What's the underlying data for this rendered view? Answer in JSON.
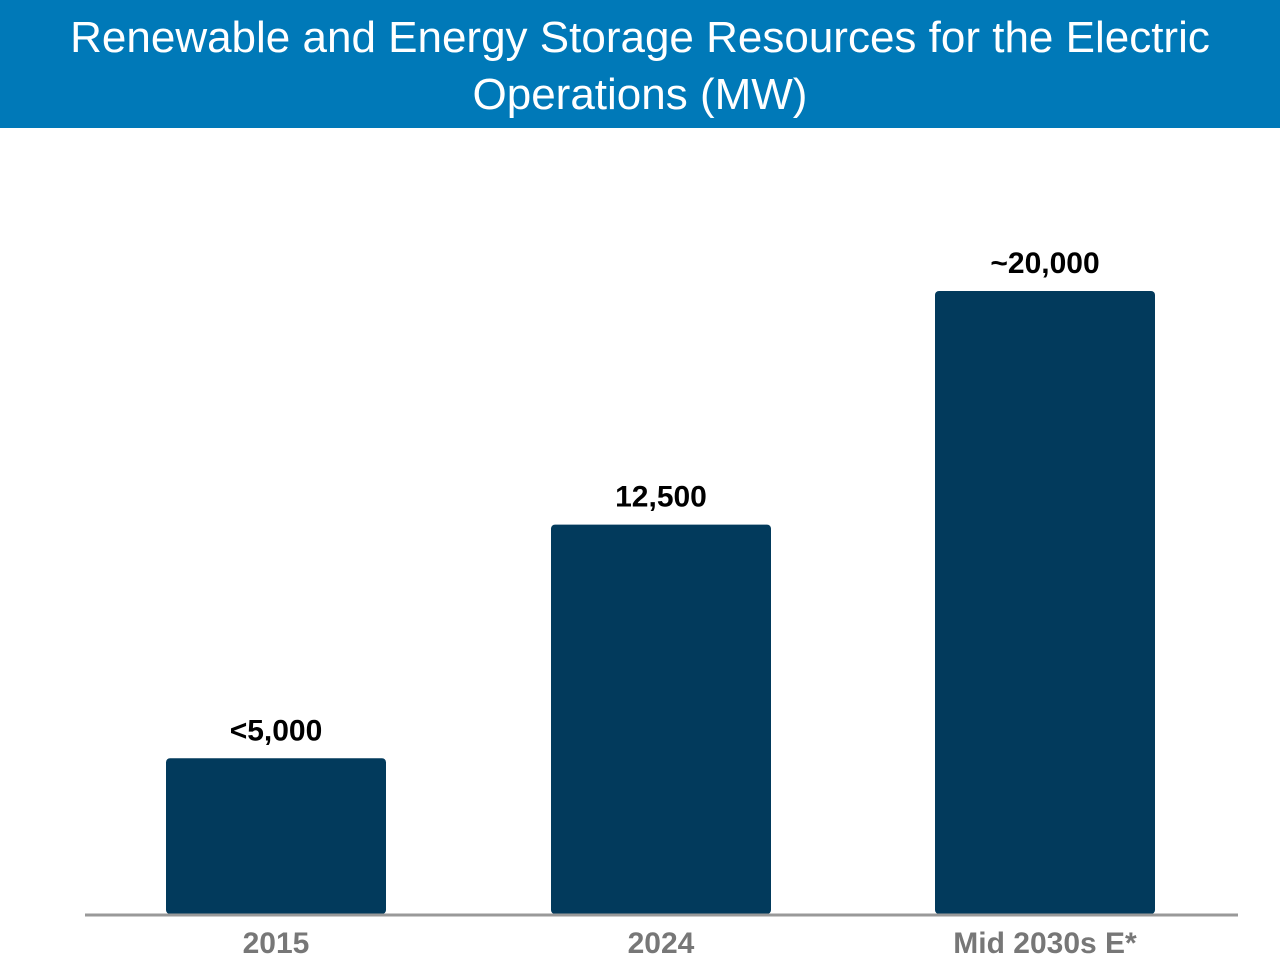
{
  "chart_data": {
    "type": "bar",
    "title": "Renewable and Energy Storage Resources for the Electric Operations (MW)",
    "categories": [
      "2015",
      "2024",
      "Mid 2030s E*"
    ],
    "values": [
      5000,
      12500,
      20000
    ],
    "data_labels": [
      "<5,000",
      "12,500",
      "~20,000"
    ],
    "xlabel": "",
    "ylabel": "",
    "ylim": [
      0,
      20000
    ],
    "grid": false,
    "legend": "none",
    "colors": {
      "bar": "#023a5c",
      "title_bg": "#0079b8",
      "axis": "#999999",
      "tick_label": "#777777"
    }
  }
}
